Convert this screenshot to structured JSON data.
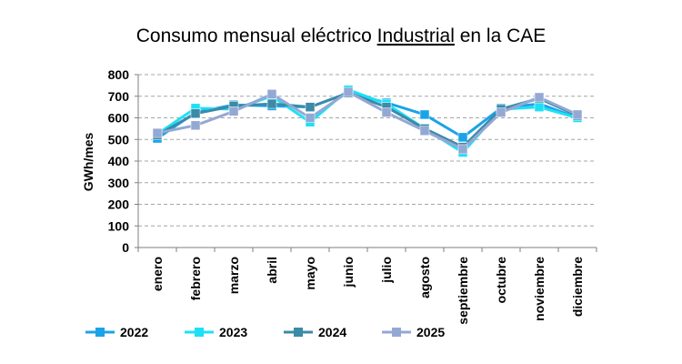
{
  "chart_data": {
    "type": "line",
    "title": {
      "prefix": "Consumo mensual eléctrico ",
      "emphasis": "Industrial",
      "suffix": " en la CAE"
    },
    "xlabel": "",
    "ylabel": "GWh/mes",
    "ylim": [
      0,
      800
    ],
    "yticks": [
      0,
      100,
      200,
      300,
      400,
      500,
      600,
      700,
      800
    ],
    "grid": "horizontal dashed",
    "legend_position": "bottom",
    "categories": [
      "enero",
      "febrero",
      "marzo",
      "abril",
      "mayo",
      "junio",
      "julio",
      "agosto",
      "septiembre",
      "octubre",
      "noviembre",
      "diciembre"
    ],
    "series": [
      {
        "name": "2022",
        "color": "#1aa3e8",
        "values": [
          505,
          625,
          660,
          655,
          650,
          715,
          670,
          615,
          510,
          645,
          665,
          600
        ]
      },
      {
        "name": "2023",
        "color": "#1ee0f5",
        "values": [
          525,
          645,
          640,
          700,
          580,
          730,
          665,
          550,
          440,
          640,
          650,
          600
        ]
      },
      {
        "name": "2024",
        "color": "#3b8aa8",
        "values": [
          520,
          620,
          655,
          665,
          650,
          715,
          650,
          550,
          465,
          640,
          690,
          610
        ]
      },
      {
        "name": "2025",
        "color": "#94a8d4",
        "values": [
          530,
          565,
          630,
          710,
          600,
          720,
          625,
          540,
          455,
          625,
          695,
          615
        ]
      }
    ]
  }
}
